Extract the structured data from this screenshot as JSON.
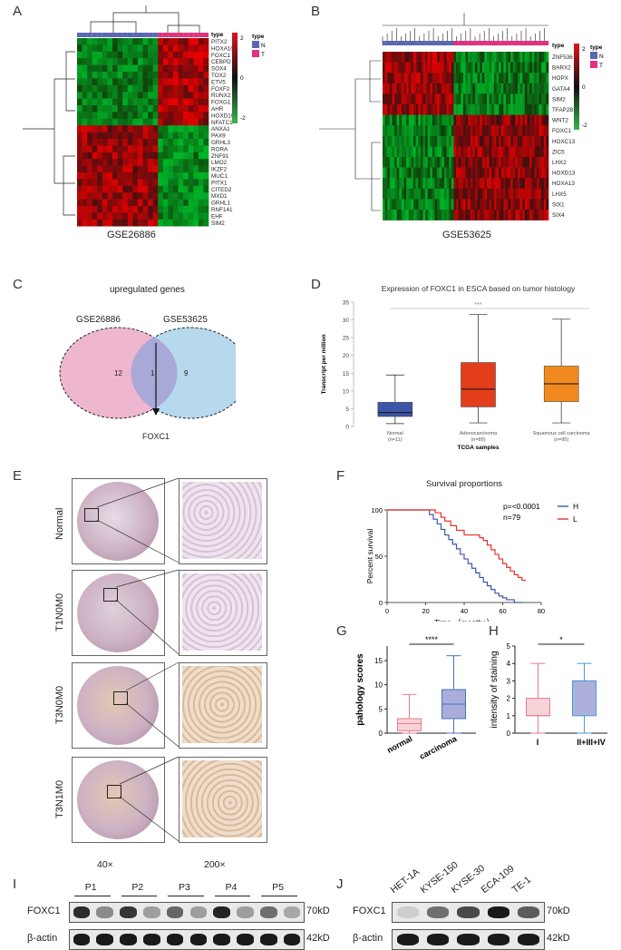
{
  "panels": {
    "A": {
      "label": "A",
      "dataset": "GSE26886",
      "genes": [
        "PITX2",
        "HOXA10",
        "FOXC1",
        "CEBPD",
        "SOX4",
        "TOX2",
        "ETV5",
        "FOXF2",
        "RUNX2",
        "FOXG1",
        "AHR",
        "HOXD10",
        "NFATC1",
        "ANXA1",
        "PAX9",
        "GRHL3",
        "RORA",
        "ZNF91",
        "LMO2",
        "IKZF2",
        "MUC1",
        "PITX1",
        "CITED2",
        "MXD1",
        "GRHL1",
        "RNF141",
        "EHF",
        "SIM2"
      ],
      "legend_title": "type",
      "legend_items": [
        "N",
        "T"
      ],
      "scale_ticks": [
        "2",
        "0",
        "-2"
      ],
      "colors": {
        "high": "#d0161f",
        "low": "#1f9d3a",
        "mid": "#111111",
        "N": "#5b67b3",
        "T": "#e2317e"
      }
    },
    "B": {
      "label": "B",
      "dataset": "GSE53625",
      "genes": [
        "ZNF536",
        "BARX2",
        "HOPX",
        "GATA4",
        "SIM2",
        "TFAP2B",
        "WNT2",
        "FOXC1",
        "HOXC13",
        "ZIC5",
        "LHX2",
        "HOXD13",
        "HOXA13",
        "LHX5",
        "SIX1",
        "SIX4"
      ],
      "legend_title": "type",
      "legend_items": [
        "N",
        "T"
      ],
      "scale_ticks": [
        "2",
        "0",
        "-2"
      ]
    },
    "C": {
      "label": "C",
      "title": "upregulated genes",
      "set1": "GSE26886",
      "set2": "GSE53625",
      "only1": "12",
      "both": "1",
      "only2": "9",
      "gene": "FOXC1",
      "colors": {
        "set1": "#efb6cf",
        "set2": "#b7d9ee",
        "overlap": "#a9a9d8"
      }
    },
    "D": {
      "label": "D",
      "title": "Expression of FOXC1 in ESCA based on tumor histology",
      "ylabel": "Transcript per million",
      "xlabel": "TCGA samples",
      "significance": "***"
    },
    "E": {
      "label": "E",
      "rows": [
        "Normal",
        "T1N0M0",
        "T3N0M0",
        "T3N1M0"
      ],
      "col1": "40×",
      "col2": "200×"
    },
    "F": {
      "label": "F",
      "title": "Survival proportions",
      "ylabel": "Percent survival",
      "xlabel": "Time （months）",
      "pvalue": "p=<0.0001",
      "n": "n=79",
      "legend": [
        "H",
        "L"
      ]
    },
    "G": {
      "label": "G",
      "ylabel": "pahology scores",
      "categories": [
        "normal",
        "carcinoma"
      ],
      "significance": "****"
    },
    "H": {
      "label": "H",
      "ylabel": "intensity of staining",
      "categories": [
        "I",
        "II+III+IV"
      ],
      "significance": "*"
    },
    "I": {
      "label": "I",
      "lanes": [
        "P1",
        "P2",
        "P3",
        "P4",
        "P5"
      ],
      "rows": [
        "FOXC1",
        "β-actin"
      ],
      "sizes": [
        "70kD",
        "42kD"
      ],
      "foxc1_intensity": [
        0.9,
        0.4,
        0.85,
        0.3,
        0.6,
        0.3,
        0.95,
        0.3,
        0.55,
        0.25
      ],
      "actin_intensity": [
        1,
        1,
        1,
        1,
        1,
        1,
        1,
        1,
        1,
        1
      ]
    },
    "J": {
      "label": "J",
      "lanes": [
        "HET-1A",
        "KYSE-150",
        "KYSE-30",
        "ECA-109",
        "TE-1"
      ],
      "rows": [
        "FOXC1",
        "β-actin"
      ],
      "sizes": [
        "70kD",
        "42kD"
      ],
      "foxc1_intensity": [
        0.05,
        0.55,
        0.75,
        1.0,
        0.65
      ],
      "actin_intensity": [
        1,
        1,
        1,
        1,
        1
      ]
    }
  },
  "chart_data": [
    {
      "type": "box",
      "title": "Expression of FOXC1 in ESCA based on tumor histology",
      "xlabel": "TCGA samples",
      "ylabel": "Transcript per million",
      "categories": [
        "Normal\n(n=11)",
        "Adenocarcinoma\n(n=89)",
        "Squamous cell carcinoma\n(n=95)"
      ],
      "ylim": [
        0,
        35
      ],
      "yticks": [
        0,
        5,
        10,
        15,
        20,
        25,
        30,
        35
      ],
      "boxes": [
        {
          "min": 0.8,
          "q1": 2.8,
          "median": 3.9,
          "q3": 6.8,
          "max": 14.5,
          "color": "#3c55a5"
        },
        {
          "min": 1.0,
          "q1": 5.5,
          "median": 10.5,
          "q3": 18.0,
          "max": 31.5,
          "color": "#e23e1c"
        },
        {
          "min": 1.0,
          "q1": 7.0,
          "median": 12.0,
          "q3": 17.0,
          "max": 30.2,
          "color": "#f08a1f"
        }
      ]
    },
    {
      "type": "line",
      "title": "Survival proportions",
      "xlabel": "Time （months）",
      "ylabel": "Percent survival",
      "xlim": [
        0,
        80
      ],
      "ylim": [
        0,
        100
      ],
      "xticks": [
        0,
        20,
        40,
        60,
        80
      ],
      "yticks": [
        0,
        50,
        100
      ],
      "series": [
        {
          "name": "H",
          "color": "#3c57a8",
          "x": [
            0,
            20,
            22,
            24,
            26,
            28,
            30,
            32,
            34,
            36,
            38,
            40,
            42,
            44,
            46,
            48,
            50,
            52,
            54,
            56,
            58,
            60,
            62,
            64,
            66,
            70
          ],
          "y": [
            100,
            100,
            95,
            90,
            85,
            79,
            73,
            68,
            63,
            58,
            52,
            47,
            42,
            37,
            32,
            27,
            22,
            18,
            14,
            10,
            7,
            5,
            3,
            3,
            0,
            0
          ]
        },
        {
          "name": "L",
          "color": "#e3322b",
          "x": [
            0,
            22,
            25,
            28,
            30,
            33,
            36,
            40,
            44,
            48,
            50,
            52,
            54,
            56,
            58,
            60,
            62,
            64,
            66,
            68,
            70,
            72
          ],
          "y": [
            100,
            100,
            97,
            92,
            88,
            83,
            78,
            73,
            73,
            70,
            67,
            62,
            57,
            52,
            47,
            42,
            38,
            34,
            30,
            27,
            24,
            24
          ]
        }
      ]
    },
    {
      "type": "box",
      "ylabel": "pahology scores",
      "categories": [
        "normal",
        "carcinoma"
      ],
      "ylim": [
        0,
        18
      ],
      "yticks": [
        0,
        5,
        10,
        15
      ],
      "boxes": [
        {
          "min": 0,
          "q1": 0.5,
          "median": 2,
          "q3": 3,
          "max": 8,
          "color": "#e87b8e",
          "fill": "#f6d3d8"
        },
        {
          "min": 0,
          "q1": 3,
          "median": 6,
          "q3": 9,
          "max": 16,
          "color": "#4b71b5",
          "fill": "#a8aed9"
        }
      ]
    },
    {
      "type": "box",
      "ylabel": "intensity of staining",
      "categories": [
        "I",
        "II+III+IV"
      ],
      "ylim": [
        0,
        5
      ],
      "yticks": [
        0,
        1,
        2,
        3,
        4,
        5
      ],
      "boxes": [
        {
          "min": 0,
          "q1": 1,
          "median": 1,
          "q3": 2,
          "max": 4,
          "color": "#e87b8e",
          "fill": "#f6d3d8"
        },
        {
          "min": 0,
          "q1": 1,
          "median": 3,
          "q3": 3,
          "max": 4,
          "color": "#4b9ad5",
          "fill": "#aeb0dc"
        }
      ]
    }
  ]
}
